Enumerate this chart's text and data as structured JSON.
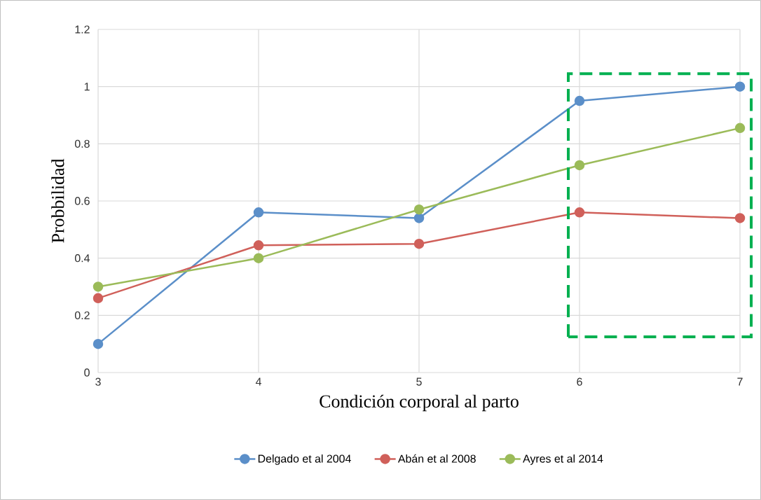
{
  "chart_data": {
    "type": "line",
    "xlabel": "Condición corporal al parto",
    "ylabel": "Probbilidad",
    "x": [
      3,
      4,
      5,
      6,
      7
    ],
    "series": [
      {
        "name": "Delgado et al 2004",
        "color": "#5b8fc9",
        "values": [
          0.1,
          0.56,
          0.54,
          0.95,
          1.0
        ]
      },
      {
        "name": "Abán et al 2008",
        "color": "#d0605a",
        "values": [
          0.26,
          0.445,
          0.45,
          0.56,
          0.54
        ]
      },
      {
        "name": "Ayres et al 2014",
        "color": "#9bbb59",
        "values": [
          0.3,
          0.4,
          0.57,
          0.725,
          0.855
        ]
      }
    ],
    "xlim": [
      3,
      7
    ],
    "xticks": [
      3,
      4,
      5,
      6,
      7
    ],
    "ylim": [
      0,
      1.2
    ],
    "yticks": [
      0,
      0.2,
      0.4,
      0.6,
      0.8,
      1,
      1.2
    ],
    "grid": true,
    "legend": "bottom",
    "marker": "circle",
    "line_style": "solid"
  }
}
